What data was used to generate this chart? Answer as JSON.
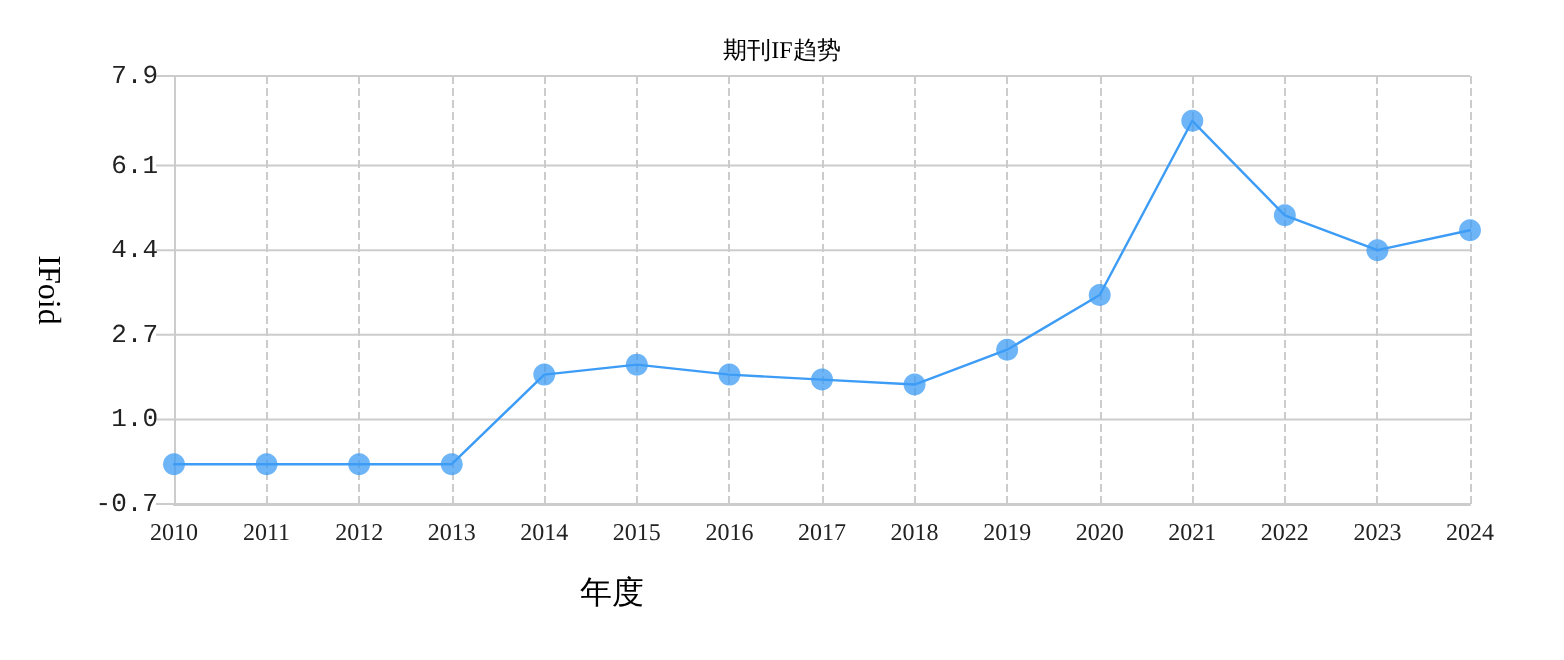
{
  "chart_data": {
    "type": "line",
    "title": "期刊IF趋势",
    "xlabel": "年度",
    "ylabel": "IFoid",
    "categories": [
      "2010",
      "2011",
      "2012",
      "2013",
      "2014",
      "2015",
      "2016",
      "2017",
      "2018",
      "2019",
      "2020",
      "2021",
      "2022",
      "2023",
      "2024"
    ],
    "series": [
      {
        "color": "#3d9cf5",
        "values": [
          0.1,
          0.1,
          0.1,
          0.1,
          1.9,
          2.1,
          1.9,
          1.8,
          1.7,
          2.4,
          3.5,
          7.0,
          5.1,
          4.4,
          4.8
        ]
      }
    ],
    "ylim": [
      -0.7,
      7.9
    ],
    "yticks": [
      -0.7,
      {
        "value": 1,
        "label": "1.0"
      },
      2.7,
      4.4,
      6.1,
      7.9
    ],
    "grid": true,
    "marker": "circle",
    "line_style": "solid"
  }
}
